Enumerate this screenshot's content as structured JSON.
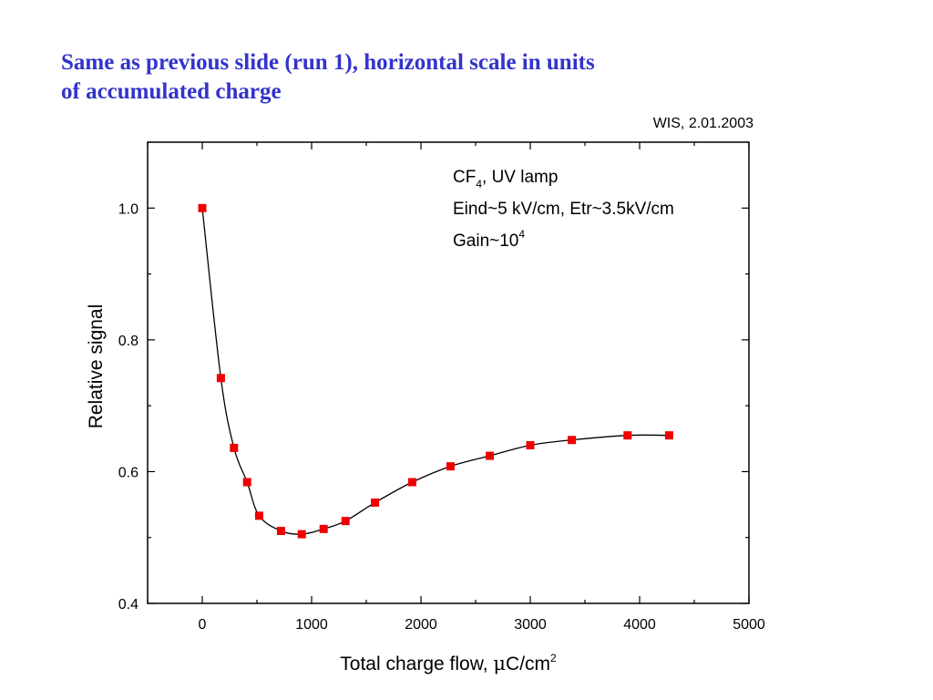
{
  "slide": {
    "title_line1": "Same as previous slide (run 1), horizontal scale in units",
    "title_line2": "of accumulated charge",
    "credit": "WIS, 2.01.2003"
  },
  "chart_data": {
    "type": "scatter",
    "xlabel_main": "Total charge flow, ",
    "xlabel_mu": "μ",
    "xlabel_unit": "C/cm",
    "xlabel_sup": "2",
    "ylabel": "Relative signal",
    "xlim": [
      -500,
      5000
    ],
    "ylim": [
      0.4,
      1.1
    ],
    "x_ticks": [
      0,
      1000,
      2000,
      3000,
      4000,
      5000
    ],
    "x_tick_labels": [
      "0",
      "1000",
      "2000",
      "3000",
      "4000",
      "5000"
    ],
    "y_ticks": [
      0.4,
      0.6,
      0.8,
      1.0
    ],
    "y_tick_labels": [
      "0.4",
      "0.6",
      "0.8",
      "1.0"
    ],
    "grid": false,
    "annotations": {
      "line1_main": "CF",
      "line1_sub": "4",
      "line1_rest": ", UV lamp",
      "line2": "Eind~5 kV/cm, Etr~3.5kV/cm",
      "line3_main": "Gain~10",
      "line3_sup": "4"
    },
    "series": [
      {
        "marker_color": "#ee0000",
        "line_color": "#000000",
        "points": [
          {
            "x": 0,
            "y": 1.0
          },
          {
            "x": 170,
            "y": 0.742
          },
          {
            "x": 290,
            "y": 0.636
          },
          {
            "x": 410,
            "y": 0.584
          },
          {
            "x": 520,
            "y": 0.533
          },
          {
            "x": 720,
            "y": 0.51
          },
          {
            "x": 910,
            "y": 0.505
          },
          {
            "x": 1110,
            "y": 0.513
          },
          {
            "x": 1310,
            "y": 0.525
          },
          {
            "x": 1580,
            "y": 0.553
          },
          {
            "x": 1920,
            "y": 0.584
          },
          {
            "x": 2270,
            "y": 0.608
          },
          {
            "x": 2630,
            "y": 0.624
          },
          {
            "x": 3000,
            "y": 0.64
          },
          {
            "x": 3380,
            "y": 0.648
          },
          {
            "x": 3890,
            "y": 0.655
          },
          {
            "x": 4270,
            "y": 0.655
          }
        ]
      }
    ]
  }
}
